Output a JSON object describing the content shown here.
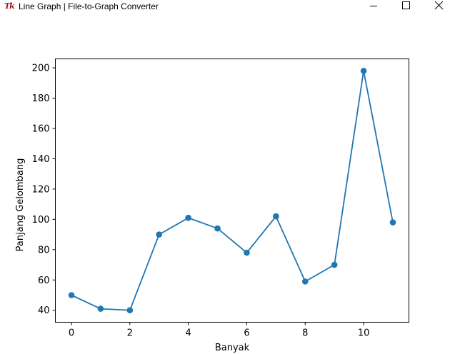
{
  "window": {
    "icon": "tk-feather-icon",
    "icon_text": "Tk",
    "title": "Line Graph | File-to-Graph Converter",
    "controls": [
      "minimize",
      "maximize",
      "close"
    ]
  },
  "chart_data": {
    "type": "line",
    "title": "",
    "xlabel": "Banyak",
    "ylabel": "Panjang Gelombang",
    "x": [
      0,
      1,
      2,
      3,
      4,
      5,
      6,
      7,
      8,
      9,
      10,
      11
    ],
    "series": [
      {
        "name": "",
        "values": [
          50,
          41,
          40,
          90,
          101,
          94,
          78,
          102,
          59,
          70,
          198,
          98
        ],
        "color": "#1f77b4",
        "marker": "circle"
      }
    ],
    "xticks": [
      "0",
      "2",
      "4",
      "6",
      "8",
      "10"
    ],
    "yticks": [
      "40",
      "60",
      "80",
      "100",
      "120",
      "140",
      "160",
      "180",
      "200"
    ],
    "xlim": [
      -0.55,
      11.55
    ],
    "ylim": [
      32.1,
      205.9
    ],
    "grid": false,
    "legend": "none"
  }
}
